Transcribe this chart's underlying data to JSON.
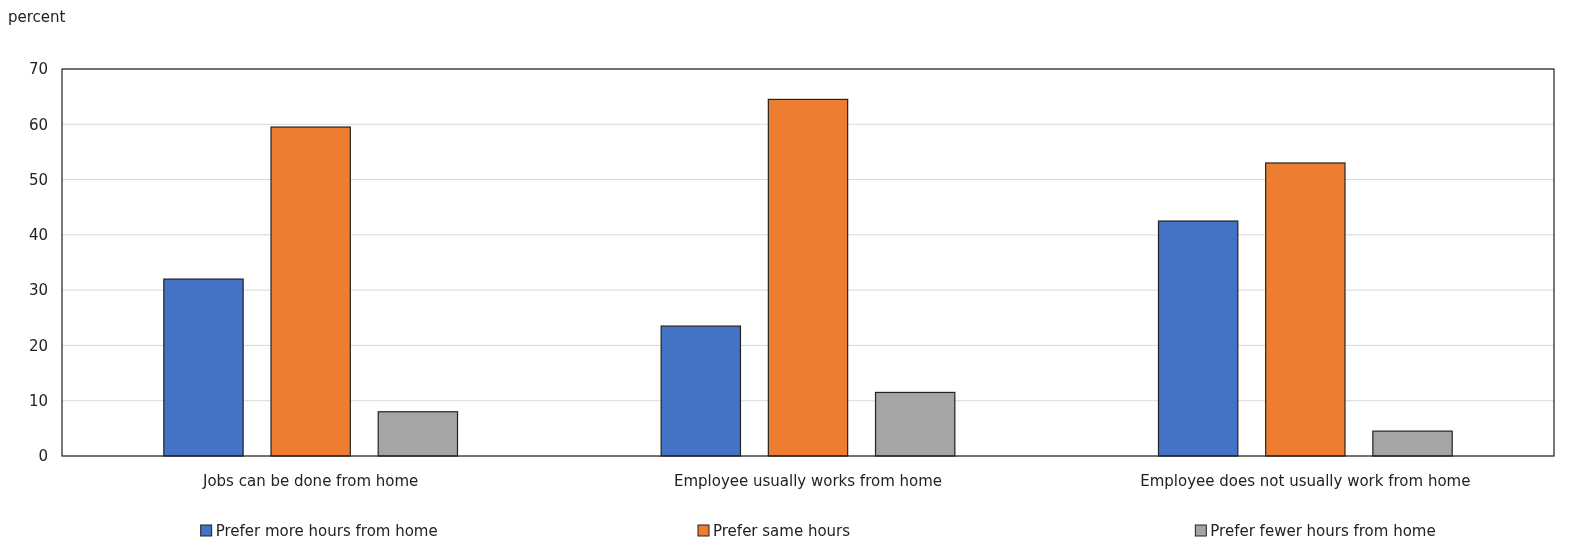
{
  "chart_data": {
    "type": "bar",
    "ylabel": "percent",
    "categories": [
      "Jobs can be done from home",
      "Employee usually works from home",
      "Employee does not usually work from home"
    ],
    "series": [
      {
        "name": "Prefer more hours from home",
        "color": "#4472c4",
        "values": [
          32,
          23.5,
          42.5
        ]
      },
      {
        "name": "Prefer same hours",
        "color": "#ed7d31",
        "values": [
          59.5,
          64.5,
          53
        ]
      },
      {
        "name": "Prefer fewer hours from home",
        "color": "#a5a5a5",
        "values": [
          8,
          11.5,
          4.5
        ]
      }
    ],
    "ylim": [
      0,
      70
    ],
    "yticks": [
      0,
      10,
      20,
      30,
      40,
      50,
      60,
      70
    ],
    "grid": "y",
    "legend": "bottom"
  }
}
